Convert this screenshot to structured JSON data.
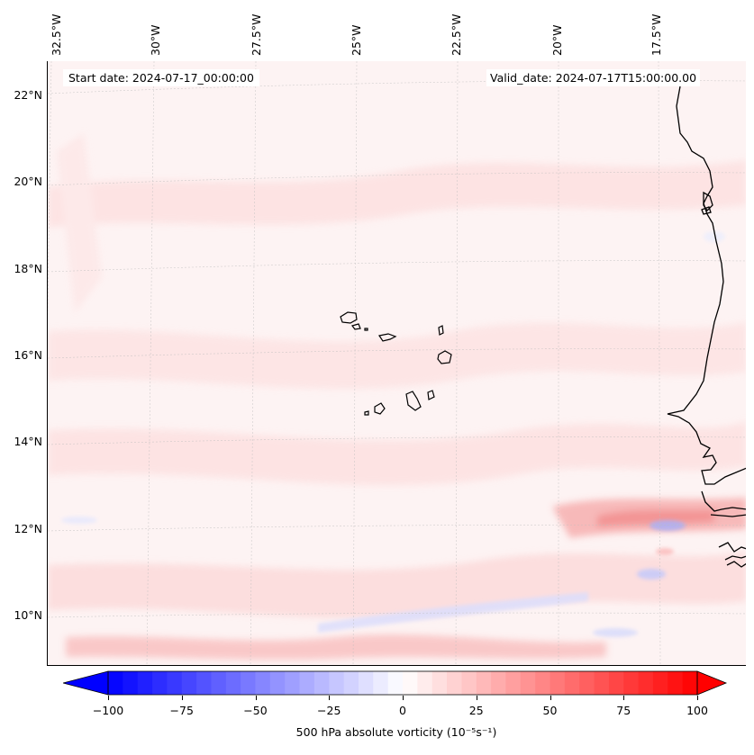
{
  "map": {
    "projection": "conic",
    "extent": {
      "lon": [
        -33.5,
        -15.5
      ],
      "lat": [
        9,
        23
      ]
    },
    "longitude_labels": [
      "32.5°W",
      "30°W",
      "27.5°W",
      "25°W",
      "22.5°W",
      "20°W",
      "17.5°W"
    ],
    "latitude_labels": [
      "22°N",
      "20°N",
      "18°N",
      "16°N",
      "14°N",
      "12°N",
      "10°N"
    ],
    "start_date_label": "Start date: 2024-07-17_00:00:00",
    "valid_date_label": "Valid_date: 2024-07-17T15:00:00.00",
    "field": "500 hPa absolute vorticity",
    "features": [
      "Cape Verde islands",
      "West African coastline"
    ]
  },
  "colorbar": {
    "min": -100,
    "max": 100,
    "tick_labels": [
      "−100",
      "−75",
      "−50",
      "−25",
      "0",
      "25",
      "50",
      "75",
      "100"
    ],
    "label": "500 hPa absolute vorticity (10⁻⁵s⁻¹)",
    "extend": "both",
    "colors": {
      "low": "#0000ff",
      "mid": "#ffffff",
      "high": "#ff0000"
    }
  }
}
